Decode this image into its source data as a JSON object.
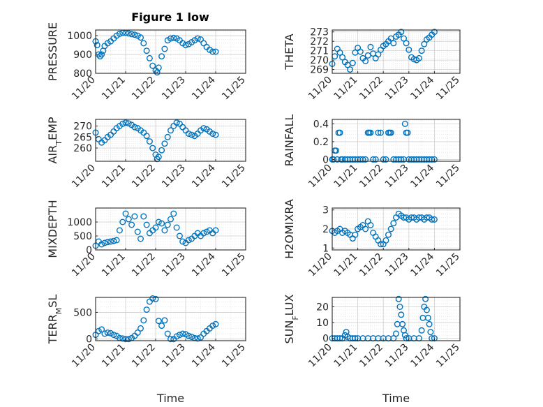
{
  "figure_title": "Figure 1 low",
  "colors": {
    "marker": "#0072BD",
    "axes": "#262626",
    "grid": "#d9d9d9"
  },
  "chart_data": [
    {
      "type": "scatter",
      "ylabel": "PRESSURE",
      "ylim": [
        800,
        1030
      ],
      "yticks": [
        800,
        900,
        1000
      ],
      "xlim": [
        0,
        5
      ],
      "xticks": [
        0,
        1,
        2,
        3,
        4,
        5
      ],
      "xticklabels": [
        "11/20",
        "11/21",
        "11/22",
        "11/23",
        "11/24",
        "11/25"
      ],
      "xlabel": "",
      "grid": "on",
      "x": [
        0,
        0.05,
        0.1,
        0.15,
        0.2,
        0.25,
        0.3,
        0.4,
        0.5,
        0.6,
        0.7,
        0.8,
        0.9,
        1.0,
        1.1,
        1.2,
        1.3,
        1.4,
        1.5,
        1.6,
        1.7,
        1.8,
        1.9,
        2.0,
        2.05,
        2.1,
        2.2,
        2.3,
        2.4,
        2.5,
        2.6,
        2.7,
        2.8,
        2.9,
        3.0,
        3.1,
        3.2,
        3.3,
        3.4,
        3.5,
        3.6,
        3.7,
        3.8,
        3.9,
        4.0
      ],
      "y": [
        970,
        950,
        900,
        890,
        900,
        920,
        945,
        960,
        970,
        985,
        1000,
        1010,
        1015,
        1015,
        1012,
        1008,
        1005,
        1000,
        990,
        960,
        920,
        880,
        840,
        815,
        805,
        830,
        890,
        930,
        975,
        985,
        988,
        985,
        975,
        960,
        950,
        955,
        965,
        975,
        985,
        980,
        960,
        940,
        925,
        915,
        915
      ]
    },
    {
      "type": "scatter",
      "ylabel": "THETA",
      "ylim": [
        268.6,
        273.2
      ],
      "yticks": [
        269,
        270,
        271,
        272,
        273
      ],
      "xlim": [
        0,
        5
      ],
      "xticks": [
        0,
        1,
        2,
        3,
        4,
        5
      ],
      "xticklabels": [
        "11/20",
        "11/21",
        "11/22",
        "11/23",
        "11/24",
        "11/25"
      ],
      "xlabel": "",
      "grid": "on",
      "x": [
        0,
        0.1,
        0.2,
        0.3,
        0.4,
        0.5,
        0.6,
        0.7,
        0.8,
        0.9,
        1.0,
        1.1,
        1.2,
        1.3,
        1.4,
        1.5,
        1.6,
        1.7,
        1.8,
        1.9,
        2.0,
        2.1,
        2.2,
        2.3,
        2.4,
        2.5,
        2.6,
        2.7,
        2.8,
        2.9,
        3.0,
        3.1,
        3.2,
        3.3,
        3.4,
        3.5,
        3.6,
        3.7,
        3.8,
        3.9,
        4.0
      ],
      "y": [
        269.6,
        270.4,
        271.2,
        270.8,
        270.3,
        269.8,
        269.5,
        269.0,
        269.7,
        270.8,
        271.3,
        270.9,
        270.2,
        269.9,
        270.5,
        271.4,
        270.7,
        270.2,
        270.6,
        271.1,
        271.5,
        271.7,
        272.0,
        272.3,
        271.8,
        272.5,
        272.7,
        273.0,
        272.3,
        271.8,
        271.1,
        270.3,
        270.1,
        270.0,
        270.2,
        271.0,
        271.7,
        272.2,
        272.4,
        272.7,
        273.0
      ]
    },
    {
      "type": "scatter",
      "ylabel": "AIR_TEMP",
      "ylim": [
        254,
        273
      ],
      "yticks": [
        260,
        265,
        270
      ],
      "xlim": [
        0,
        5
      ],
      "xticks": [
        0,
        1,
        2,
        3,
        4,
        5
      ],
      "xticklabels": [
        "11/20",
        "11/21",
        "11/22",
        "11/23",
        "11/24",
        "11/25"
      ],
      "xlabel": "",
      "grid": "on",
      "x": [
        0,
        0.1,
        0.2,
        0.3,
        0.4,
        0.5,
        0.6,
        0.7,
        0.8,
        0.9,
        1.0,
        1.1,
        1.2,
        1.3,
        1.4,
        1.5,
        1.6,
        1.7,
        1.8,
        1.9,
        2.0,
        2.05,
        2.1,
        2.2,
        2.3,
        2.4,
        2.5,
        2.6,
        2.7,
        2.8,
        2.9,
        3.0,
        3.1,
        3.2,
        3.3,
        3.4,
        3.5,
        3.6,
        3.7,
        3.8,
        3.9,
        4.0
      ],
      "y": [
        267,
        264,
        262.5,
        263.5,
        265,
        266,
        267.5,
        269,
        270,
        271,
        271.5,
        271.2,
        270.5,
        269.5,
        269,
        268,
        267,
        265.5,
        263,
        260,
        257,
        255,
        256,
        259,
        262,
        265,
        268,
        270,
        271.5,
        271,
        269.5,
        268,
        266.5,
        266,
        265.5,
        266.5,
        268,
        269,
        268.5,
        267.5,
        266.5,
        266
      ]
    },
    {
      "type": "scatter",
      "ylabel": "RAINFALL",
      "ylim": [
        -0.02,
        0.45
      ],
      "yticks": [
        0,
        0.2,
        0.4
      ],
      "xlim": [
        0,
        5
      ],
      "xticks": [
        0,
        1,
        2,
        3,
        4,
        5
      ],
      "xticklabels": [
        "11/20",
        "11/21",
        "11/22",
        "11/23",
        "11/24",
        "11/25"
      ],
      "xlabel": "",
      "grid": "on",
      "x": [
        0,
        0.05,
        0.1,
        0.15,
        0.2,
        0.25,
        0.3,
        0.35,
        0.4,
        0.5,
        0.6,
        0.7,
        0.8,
        0.9,
        1.0,
        1.1,
        1.2,
        1.3,
        1.4,
        1.45,
        1.5,
        1.6,
        1.7,
        1.8,
        1.9,
        2.0,
        2.1,
        2.2,
        2.25,
        2.3,
        2.4,
        2.5,
        2.6,
        2.7,
        2.8,
        2.85,
        2.9,
        2.95,
        3.0,
        3.1,
        3.2,
        3.3,
        3.4,
        3.5,
        3.6,
        3.7,
        3.8,
        3.9,
        4.0
      ],
      "y": [
        0,
        0,
        0.1,
        0.1,
        0,
        0.3,
        0.3,
        0,
        0,
        0,
        0,
        0,
        0,
        0,
        0,
        0,
        0,
        0,
        0.3,
        0.3,
        0.3,
        0,
        0,
        0.3,
        0.3,
        0,
        0,
        0.3,
        0.3,
        0.3,
        0,
        0,
        0,
        0,
        0,
        0.4,
        0.3,
        0.3,
        0,
        0,
        0,
        0,
        0,
        0,
        0,
        0,
        0,
        0,
        0
      ]
    },
    {
      "type": "scatter",
      "ylabel": "MIXDEPTH",
      "ylim": [
        0,
        1500
      ],
      "yticks": [
        0,
        500,
        1000
      ],
      "xlim": [
        0,
        5
      ],
      "xticks": [
        0,
        1,
        2,
        3,
        4,
        5
      ],
      "xticklabels": [
        "11/20",
        "11/21",
        "11/22",
        "11/23",
        "11/24",
        "11/25"
      ],
      "xlabel": "",
      "grid": "on",
      "x": [
        0,
        0.1,
        0.2,
        0.3,
        0.4,
        0.5,
        0.6,
        0.7,
        0.8,
        0.9,
        1.0,
        1.1,
        1.2,
        1.3,
        1.4,
        1.5,
        1.6,
        1.7,
        1.8,
        1.9,
        2.0,
        2.1,
        2.2,
        2.3,
        2.4,
        2.5,
        2.6,
        2.7,
        2.8,
        2.9,
        3.0,
        3.1,
        3.2,
        3.3,
        3.4,
        3.5,
        3.6,
        3.7,
        3.8,
        3.9,
        4.0
      ],
      "y": [
        150,
        300,
        200,
        250,
        280,
        300,
        320,
        350,
        700,
        1000,
        1300,
        1100,
        900,
        1200,
        650,
        400,
        1200,
        900,
        600,
        700,
        800,
        1000,
        950,
        700,
        900,
        1100,
        1300,
        800,
        500,
        300,
        250,
        350,
        400,
        500,
        600,
        500,
        600,
        650,
        700,
        600,
        700
      ]
    },
    {
      "type": "scatter",
      "ylabel": "H2OMIXRA",
      "ylim": [
        0.9,
        3.1
      ],
      "yticks": [
        1,
        2,
        3
      ],
      "xlim": [
        0,
        5
      ],
      "xticks": [
        0,
        1,
        2,
        3,
        4,
        5
      ],
      "xticklabels": [
        "11/20",
        "11/21",
        "11/22",
        "11/23",
        "11/24",
        "11/25"
      ],
      "xlabel": "",
      "grid": "on",
      "x": [
        0,
        0.1,
        0.2,
        0.3,
        0.4,
        0.5,
        0.6,
        0.7,
        0.8,
        0.9,
        1.0,
        1.1,
        1.2,
        1.3,
        1.4,
        1.5,
        1.6,
        1.7,
        1.8,
        1.9,
        2.0,
        2.1,
        2.2,
        2.3,
        2.4,
        2.5,
        2.6,
        2.7,
        2.8,
        2.9,
        3.0,
        3.1,
        3.2,
        3.3,
        3.4,
        3.5,
        3.6,
        3.7,
        3.8,
        3.9,
        4.0
      ],
      "y": [
        1.9,
        1.8,
        1.9,
        2.0,
        1.8,
        1.9,
        1.8,
        1.7,
        1.5,
        1.7,
        2.0,
        2.1,
        2.2,
        2.0,
        2.4,
        2.2,
        1.8,
        1.6,
        1.4,
        1.2,
        1.2,
        1.4,
        1.7,
        2.0,
        2.3,
        2.6,
        2.8,
        2.7,
        2.6,
        2.6,
        2.5,
        2.6,
        2.6,
        2.5,
        2.6,
        2.6,
        2.5,
        2.6,
        2.6,
        2.5,
        2.5
      ]
    },
    {
      "type": "scatter",
      "ylabel": "TERR_MSL",
      "ylim": [
        -30,
        780
      ],
      "yticks": [
        0,
        500
      ],
      "xlim": [
        0,
        5
      ],
      "xticks": [
        0,
        1,
        2,
        3,
        4,
        5
      ],
      "xticklabels": [
        "11/20",
        "11/21",
        "11/22",
        "11/23",
        "11/24",
        "11/25"
      ],
      "xlabel": "Time",
      "grid": "on",
      "x": [
        0,
        0.1,
        0.2,
        0.3,
        0.4,
        0.5,
        0.6,
        0.7,
        0.8,
        0.9,
        1.0,
        1.1,
        1.2,
        1.3,
        1.4,
        1.5,
        1.6,
        1.7,
        1.8,
        1.9,
        2.0,
        2.1,
        2.2,
        2.3,
        2.4,
        2.5,
        2.6,
        2.7,
        2.8,
        2.9,
        3.0,
        3.1,
        3.2,
        3.3,
        3.4,
        3.5,
        3.6,
        3.7,
        3.8,
        3.9,
        4.0
      ],
      "y": [
        80,
        150,
        180,
        100,
        120,
        110,
        80,
        60,
        20,
        10,
        0,
        0,
        20,
        60,
        120,
        200,
        350,
        550,
        700,
        760,
        750,
        340,
        250,
        350,
        100,
        0,
        0,
        50,
        80,
        100,
        90,
        60,
        40,
        20,
        10,
        30,
        100,
        150,
        200,
        250,
        280
      ]
    },
    {
      "type": "scatter",
      "ylabel": "SUN_FLUX",
      "ylim": [
        -1.5,
        26
      ],
      "yticks": [
        0,
        10,
        20
      ],
      "xlim": [
        0,
        5
      ],
      "xticks": [
        0,
        1,
        2,
        3,
        4,
        5
      ],
      "xticklabels": [
        "11/20",
        "11/21",
        "11/22",
        "11/23",
        "11/24",
        "11/25"
      ],
      "xlabel": "Time",
      "grid": "on",
      "x": [
        0,
        0.1,
        0.2,
        0.3,
        0.4,
        0.5,
        0.55,
        0.6,
        0.7,
        0.8,
        0.9,
        1.0,
        1.2,
        1.4,
        1.6,
        1.8,
        2.0,
        2.2,
        2.4,
        2.5,
        2.55,
        2.6,
        2.65,
        2.7,
        2.75,
        2.8,
        2.85,
        2.9,
        3.0,
        3.2,
        3.4,
        3.5,
        3.55,
        3.6,
        3.65,
        3.7,
        3.75,
        3.8,
        3.85,
        3.9,
        4.0
      ],
      "y": [
        0,
        0,
        0,
        0,
        0,
        2,
        4,
        1,
        0,
        0,
        0,
        0,
        0,
        0,
        0,
        0,
        0,
        0,
        0,
        3,
        9,
        25,
        20,
        15,
        9,
        5,
        2,
        0,
        0,
        0,
        0,
        5,
        13,
        20,
        25,
        18,
        13,
        9,
        4,
        0,
        0
      ]
    }
  ]
}
